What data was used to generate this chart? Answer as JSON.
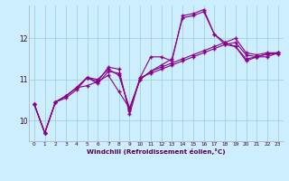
{
  "xlabel": "Windchill (Refroidissement éolien,°C)",
  "background_color": "#cceeff",
  "line_color": "#880088",
  "grid_color": "#99cccc",
  "xlim": [
    -0.5,
    23.5
  ],
  "ylim": [
    9.5,
    12.8
  ],
  "yticks": [
    10,
    11,
    12
  ],
  "xticks": [
    0,
    1,
    2,
    3,
    4,
    5,
    6,
    7,
    8,
    9,
    10,
    11,
    12,
    13,
    14,
    15,
    16,
    17,
    18,
    19,
    20,
    21,
    22,
    23
  ],
  "lines": [
    [
      10.4,
      9.7,
      10.45,
      10.55,
      10.75,
      11.05,
      10.9,
      11.2,
      11.15,
      10.25,
      11.05,
      11.15,
      11.25,
      11.35,
      11.45,
      11.55,
      11.65,
      11.75,
      11.85,
      11.9,
      11.6,
      11.55,
      11.62,
      11.62
    ],
    [
      10.4,
      9.7,
      10.45,
      10.6,
      10.8,
      10.85,
      10.95,
      11.1,
      10.7,
      10.3,
      11.0,
      11.2,
      11.35,
      11.5,
      12.5,
      12.55,
      12.65,
      12.1,
      11.9,
      11.8,
      11.5,
      11.55,
      11.62,
      11.65
    ],
    [
      10.4,
      9.7,
      10.45,
      10.6,
      10.8,
      11.05,
      10.95,
      11.3,
      11.25,
      10.15,
      11.05,
      11.55,
      11.55,
      11.45,
      12.55,
      12.6,
      12.7,
      12.1,
      11.85,
      11.8,
      11.45,
      11.55,
      11.55,
      11.65
    ],
    [
      10.4,
      9.7,
      10.45,
      10.6,
      10.8,
      11.05,
      11.0,
      11.25,
      11.1,
      10.3,
      11.0,
      11.2,
      11.3,
      11.4,
      11.5,
      11.6,
      11.7,
      11.8,
      11.9,
      12.0,
      11.65,
      11.6,
      11.65,
      11.65
    ]
  ]
}
